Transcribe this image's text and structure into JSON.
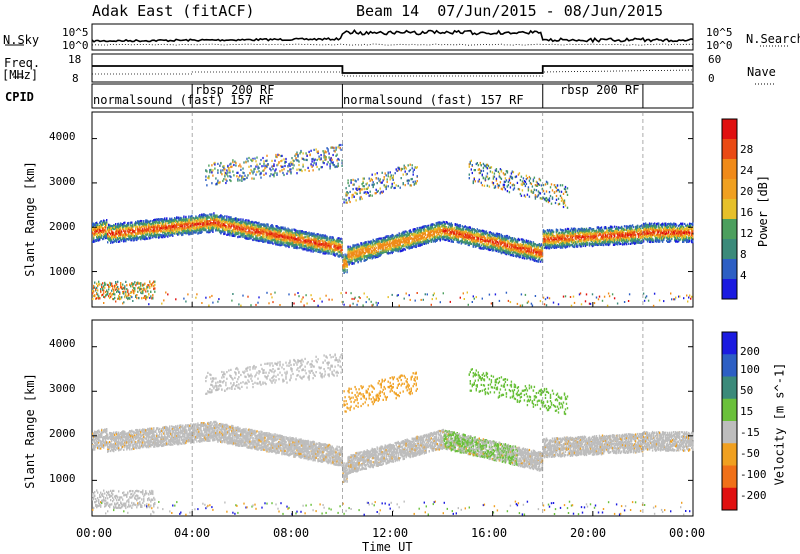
{
  "header": {
    "station": "Adak East (fitACF)",
    "beam_dates": "Beam 14  07/Jun/2015 - 08/Jun/2015"
  },
  "strips": {
    "nsky_label": "N.Sky",
    "nsearch_label": "N.Search",
    "freq_label_1": "Freq.",
    "freq_label_2": "[MHz]",
    "nave_label": "Nave",
    "cpid_label": "CPID",
    "noise_left_ticks": [
      "10^5",
      "10^0"
    ],
    "noise_right_ticks": [
      "10^5",
      "10^0"
    ],
    "freq_ticks": [
      "18",
      "8"
    ],
    "nave_ticks": [
      "60",
      "0"
    ],
    "cpid_segments": [
      {
        "label": "normalsound (fast) 157 RF",
        "start": 0,
        "end": 4
      },
      {
        "label": "rbsp 200 RF",
        "start": 4,
        "end": 10
      },
      {
        "label": "normalsound (fast) 157 RF",
        "start": 10,
        "end": 18
      },
      {
        "label": "rbsp 200 RF",
        "start": 18,
        "end": 22
      }
    ]
  },
  "chart_data": [
    {
      "type": "heatmap",
      "ylabel": "Slant Range [km]",
      "ylim": [
        200,
        4600
      ],
      "xlim": [
        0,
        24
      ],
      "yticks": [
        1000,
        2000,
        3000,
        4000
      ],
      "colorbar": {
        "label": "Power [dB]",
        "ticks": [
          "4",
          "8",
          "12",
          "16",
          "20",
          "24",
          "28"
        ]
      }
    },
    {
      "type": "heatmap",
      "ylabel": "Slant Range [km]",
      "xlabel": "Time UT",
      "ylim": [
        200,
        4600
      ],
      "xlim": [
        0,
        24
      ],
      "yticks": [
        1000,
        2000,
        3000,
        4000
      ],
      "xticks": [
        "00:00",
        "04:00",
        "08:00",
        "12:00",
        "16:00",
        "20:00",
        "00:00"
      ],
      "colorbar": {
        "label": "Velocity [m s^-1]",
        "ticks": [
          "200",
          "100",
          "50",
          "15",
          "-15",
          "-50",
          "-100",
          "-200"
        ]
      }
    }
  ]
}
